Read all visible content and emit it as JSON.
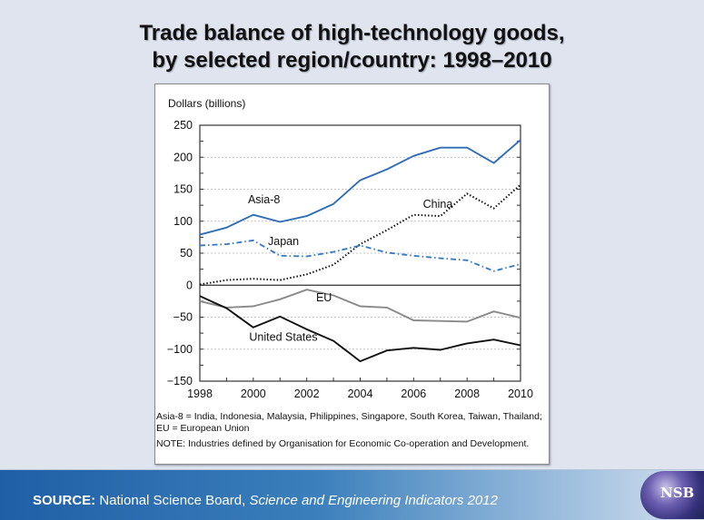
{
  "title_line1": "Trade balance of high-technology goods,",
  "title_line2": "by selected region/country: 1998–2010",
  "chart_data": {
    "type": "line",
    "title": "Trade balance of high-technology goods, by selected region/country: 1998–2010",
    "ylabel": "Dollars (billions)",
    "xlabel": "",
    "x": [
      1998,
      1999,
      2000,
      2001,
      2002,
      2003,
      2004,
      2005,
      2006,
      2007,
      2008,
      2009,
      2010
    ],
    "xticks": [
      "1998",
      "2000",
      "2002",
      "2004",
      "2006",
      "2008",
      "2010"
    ],
    "yticks": [
      "250",
      "200",
      "150",
      "100",
      "50",
      "0",
      "−50",
      "−100",
      "−150"
    ],
    "ylim": [
      -150,
      250
    ],
    "xlim": [
      1998,
      2010
    ],
    "grid": "horizontal dotted",
    "legend": "inline labels",
    "series": [
      {
        "name": "Asia-8",
        "label": "Asia-8",
        "color": "#2f6db5",
        "style": "solid",
        "values": [
          79,
          90,
          110,
          99,
          108,
          127,
          164,
          181,
          202,
          215,
          215,
          191,
          227
        ]
      },
      {
        "name": "China",
        "label": "China",
        "color": "#111111",
        "style": "dotted",
        "values": [
          1,
          8,
          10,
          8,
          17,
          32,
          64,
          86,
          110,
          108,
          143,
          120,
          157
        ]
      },
      {
        "name": "Japan",
        "label": "Japan",
        "color": "#3a7cc4",
        "style": "dashdot",
        "values": [
          62,
          64,
          70,
          46,
          45,
          52,
          62,
          51,
          46,
          42,
          39,
          22,
          33
        ]
      },
      {
        "name": "EU",
        "label": "EU",
        "color": "#8a8a8a",
        "style": "solid",
        "values": [
          -25,
          -35,
          -33,
          -22,
          -7,
          -16,
          -33,
          -35,
          -55,
          -56,
          -57,
          -41,
          -51
        ]
      },
      {
        "name": "United States",
        "label": "United States",
        "color": "#111111",
        "style": "solid",
        "values": [
          -17,
          -36,
          -66,
          -49,
          -69,
          -87,
          -119,
          -102,
          -98,
          -101,
          -91,
          -85,
          -94
        ]
      }
    ],
    "notes": [
      "Asia-8 = India, Indonesia, Malaysia, Philippines, Singapore, South Korea, Taiwan, Thailand; EU = European Union",
      "NOTE: Industries defined by Organisation for Economic Co-operation and Development."
    ]
  },
  "footer": {
    "source_label": "SOURCE:",
    "source_text": " National Science Board, ",
    "source_title": "Science and Engineering Indicators 2012",
    "logo_text": "NSB"
  }
}
